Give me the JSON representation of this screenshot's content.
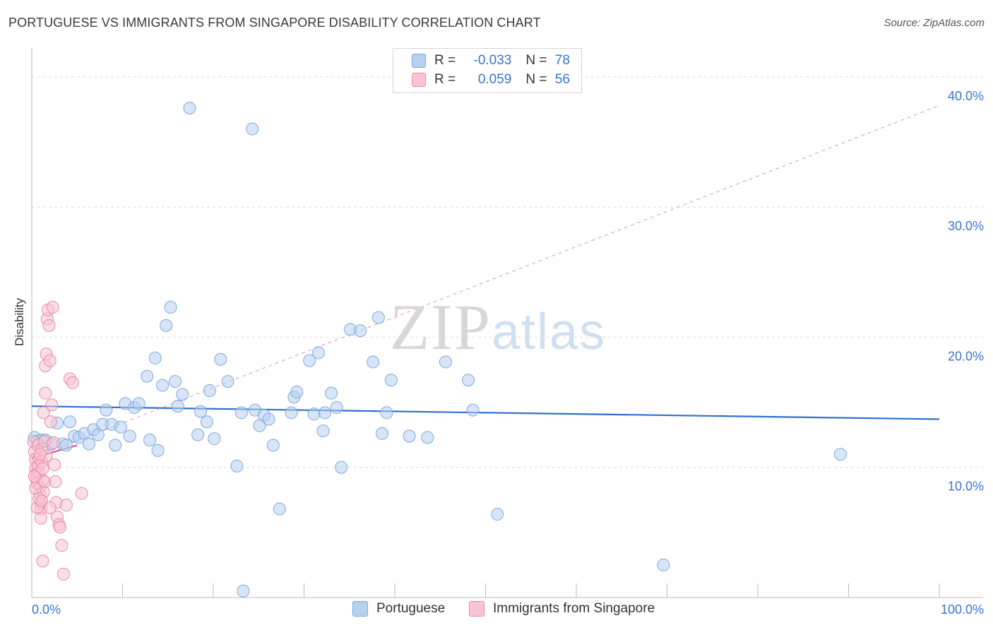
{
  "title": "PORTUGUESE VS IMMIGRANTS FROM SINGAPORE DISABILITY CORRELATION CHART",
  "source": "Source: ZipAtlas.com",
  "watermark": {
    "zip": "ZIP",
    "atlas": "atlas"
  },
  "legend_top": [
    {
      "label": "R = ",
      "r": "-0.033",
      "n_label": "N = ",
      "n": "78",
      "color": "#b6d0f0",
      "border": "#7ea8e0"
    },
    {
      "label": "R = ",
      "r": "0.059",
      "n_label": "N = ",
      "n": "56",
      "color": "#f8c4d3",
      "border": "#e88aa6"
    }
  ],
  "legend_bottom": [
    {
      "label": "Portuguese",
      "color": "#b6d0f0",
      "border": "#7ea8e0"
    },
    {
      "label": "Immigrants from Singapore",
      "color": "#f8c4d3",
      "border": "#e88aa6"
    }
  ],
  "chart_data": {
    "type": "scatter",
    "title": "PORTUGUESE VS IMMIGRANTS FROM SINGAPORE DISABILITY CORRELATION CHART",
    "xlabel": "",
    "ylabel": "Disability",
    "xlim": [
      0,
      100
    ],
    "ylim": [
      0,
      42
    ],
    "x_tick_labels": [
      "0.0%",
      "100.0%"
    ],
    "y_ticks": [
      10,
      20,
      30,
      40
    ],
    "y_tick_labels": [
      "10.0%",
      "20.0%",
      "30.0%",
      "40.0%"
    ],
    "grid": true,
    "series": [
      {
        "name": "Portuguese",
        "color": "#7ea8e0",
        "fill": "#b6d0f0",
        "trend": {
          "x0": 0,
          "y0": 14.7,
          "x1": 100,
          "y1": 13.7,
          "color": "#2f6fcf",
          "style": "solid"
        },
        "points": [
          [
            0.3,
            12.3
          ],
          [
            0.6,
            12.0
          ],
          [
            1.0,
            12.1
          ],
          [
            1.5,
            12.1
          ],
          [
            2.2,
            11.8
          ],
          [
            2.8,
            13.4
          ],
          [
            3.4,
            11.8
          ],
          [
            3.8,
            11.7
          ],
          [
            4.2,
            13.5
          ],
          [
            4.7,
            12.4
          ],
          [
            5.2,
            12.3
          ],
          [
            5.8,
            12.6
          ],
          [
            6.3,
            11.8
          ],
          [
            6.8,
            12.9
          ],
          [
            7.3,
            12.5
          ],
          [
            7.8,
            13.3
          ],
          [
            8.2,
            14.4
          ],
          [
            8.8,
            13.3
          ],
          [
            9.2,
            11.7
          ],
          [
            9.8,
            13.1
          ],
          [
            10.3,
            14.9
          ],
          [
            10.8,
            12.4
          ],
          [
            11.3,
            14.6
          ],
          [
            11.8,
            14.9
          ],
          [
            12.7,
            17.0
          ],
          [
            13.0,
            12.1
          ],
          [
            13.6,
            18.4
          ],
          [
            13.9,
            11.3
          ],
          [
            14.4,
            16.3
          ],
          [
            14.8,
            20.9
          ],
          [
            15.3,
            22.3
          ],
          [
            15.8,
            16.6
          ],
          [
            16.1,
            14.7
          ],
          [
            16.6,
            15.6
          ],
          [
            17.4,
            37.6
          ],
          [
            18.3,
            12.5
          ],
          [
            18.6,
            14.3
          ],
          [
            19.3,
            13.5
          ],
          [
            19.6,
            15.9
          ],
          [
            20.1,
            12.2
          ],
          [
            20.8,
            18.3
          ],
          [
            21.6,
            16.6
          ],
          [
            22.6,
            10.1
          ],
          [
            23.1,
            14.2
          ],
          [
            23.3,
            0.5
          ],
          [
            24.3,
            36.0
          ],
          [
            24.6,
            14.4
          ],
          [
            25.1,
            13.2
          ],
          [
            25.6,
            14.0
          ],
          [
            26.1,
            13.7
          ],
          [
            26.6,
            11.7
          ],
          [
            27.3,
            6.8
          ],
          [
            28.6,
            14.2
          ],
          [
            28.9,
            15.4
          ],
          [
            29.2,
            15.8
          ],
          [
            30.6,
            18.2
          ],
          [
            31.1,
            14.1
          ],
          [
            31.6,
            18.8
          ],
          [
            32.1,
            12.8
          ],
          [
            32.3,
            14.2
          ],
          [
            33.0,
            15.7
          ],
          [
            33.6,
            14.6
          ],
          [
            34.1,
            10.0
          ],
          [
            35.1,
            20.6
          ],
          [
            36.2,
            20.5
          ],
          [
            37.6,
            18.1
          ],
          [
            38.2,
            21.5
          ],
          [
            38.6,
            12.6
          ],
          [
            39.1,
            14.2
          ],
          [
            39.6,
            16.7
          ],
          [
            41.6,
            12.4
          ],
          [
            43.6,
            12.3
          ],
          [
            45.6,
            18.1
          ],
          [
            48.1,
            16.7
          ],
          [
            48.6,
            14.4
          ],
          [
            51.3,
            6.4
          ],
          [
            69.6,
            2.5
          ],
          [
            89.1,
            11.0
          ]
        ]
      },
      {
        "name": "Immigrants from Singapore",
        "color": "#e88aa6",
        "fill": "#f8c4d3",
        "trend": {
          "x0": 0,
          "y0": 10.7,
          "x1": 5,
          "y1": 11.7,
          "color": "#e0577f",
          "style": "solid"
        },
        "trend_extended": {
          "x0": 0,
          "y0": 10.7,
          "x1": 100,
          "y1": 37.8,
          "color": "#e9a0b6",
          "style": "dashed"
        },
        "points": [
          [
            0.2,
            12.0
          ],
          [
            0.3,
            11.2
          ],
          [
            0.4,
            10.6
          ],
          [
            0.4,
            9.9
          ],
          [
            0.5,
            9.5
          ],
          [
            0.5,
            9.1
          ],
          [
            0.6,
            8.8
          ],
          [
            0.7,
            10.1
          ],
          [
            0.7,
            11.7
          ],
          [
            0.8,
            10.7
          ],
          [
            0.8,
            9.6
          ],
          [
            0.9,
            8.5
          ],
          [
            0.9,
            7.9
          ],
          [
            1.0,
            7.2
          ],
          [
            1.0,
            6.8
          ],
          [
            1.1,
            11.4
          ],
          [
            1.1,
            10.4
          ],
          [
            1.2,
            9.9
          ],
          [
            1.2,
            9.0
          ],
          [
            1.3,
            8.1
          ],
          [
            1.3,
            14.2
          ],
          [
            1.4,
            12.0
          ],
          [
            1.5,
            15.7
          ],
          [
            1.5,
            17.8
          ],
          [
            1.6,
            18.7
          ],
          [
            1.7,
            21.4
          ],
          [
            1.8,
            22.1
          ],
          [
            1.9,
            20.9
          ],
          [
            2.0,
            18.2
          ],
          [
            2.1,
            13.5
          ],
          [
            2.2,
            14.8
          ],
          [
            2.3,
            22.3
          ],
          [
            2.4,
            11.9
          ],
          [
            2.5,
            10.2
          ],
          [
            2.6,
            8.9
          ],
          [
            2.7,
            7.3
          ],
          [
            2.8,
            6.2
          ],
          [
            3.0,
            5.6
          ],
          [
            3.1,
            5.4
          ],
          [
            3.3,
            4.0
          ],
          [
            1.2,
            2.8
          ],
          [
            3.5,
            1.8
          ],
          [
            3.8,
            7.1
          ],
          [
            4.2,
            16.8
          ],
          [
            4.5,
            16.5
          ],
          [
            5.5,
            8.0
          ],
          [
            0.6,
            6.9
          ],
          [
            0.8,
            7.6
          ],
          [
            1.0,
            6.1
          ],
          [
            1.4,
            8.9
          ],
          [
            1.6,
            10.9
          ],
          [
            0.4,
            8.4
          ],
          [
            0.3,
            9.3
          ],
          [
            0.9,
            11.0
          ],
          [
            1.1,
            7.4
          ],
          [
            2.0,
            6.9
          ]
        ]
      }
    ]
  }
}
